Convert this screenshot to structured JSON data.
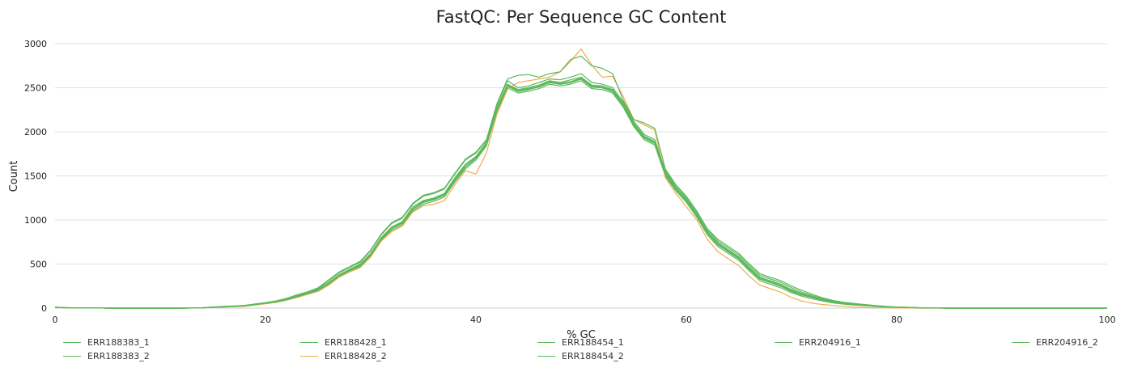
{
  "chart_data": {
    "type": "line",
    "title": "FastQC: Per Sequence GC Content",
    "xlabel": "% GC",
    "ylabel": "Count",
    "xlim": [
      0,
      100
    ],
    "ylim": [
      0,
      3000
    ],
    "x_ticks": [
      0,
      20,
      40,
      60,
      80,
      100
    ],
    "y_ticks": [
      0,
      500,
      1000,
      1500,
      2000,
      2500,
      3000
    ],
    "grid": "horizontal",
    "legend_position": "bottom",
    "x": [
      0,
      1,
      2,
      3,
      4,
      5,
      6,
      7,
      8,
      9,
      10,
      11,
      12,
      13,
      14,
      15,
      16,
      17,
      18,
      19,
      20,
      21,
      22,
      23,
      24,
      25,
      26,
      27,
      28,
      29,
      30,
      31,
      32,
      33,
      34,
      35,
      36,
      37,
      38,
      39,
      40,
      41,
      42,
      43,
      44,
      45,
      46,
      47,
      48,
      49,
      50,
      51,
      52,
      53,
      54,
      55,
      56,
      57,
      58,
      59,
      60,
      61,
      62,
      63,
      64,
      65,
      66,
      67,
      68,
      69,
      70,
      71,
      72,
      73,
      74,
      75,
      76,
      77,
      78,
      79,
      80,
      81,
      82,
      83,
      84,
      85,
      86,
      87,
      88,
      89,
      90,
      91,
      92,
      93,
      94,
      95,
      96,
      97,
      98,
      99,
      100
    ],
    "series": [
      {
        "name": "ERR188383_1",
        "color": "#5cb85c",
        "values": [
          10,
          5,
          3,
          2,
          1,
          0,
          0,
          0,
          0,
          0,
          0,
          0,
          0,
          1,
          3,
          8,
          14,
          18,
          24,
          40,
          55,
          70,
          95,
          130,
          165,
          200,
          280,
          370,
          430,
          480,
          600,
          780,
          900,
          960,
          1120,
          1200,
          1230,
          1280,
          1450,
          1600,
          1700,
          1860,
          2250,
          2520,
          2460,
          2480,
          2510,
          2560,
          2540,
          2560,
          2600,
          2510,
          2500,
          2460,
          2300,
          2080,
          1930,
          1870,
          1520,
          1350,
          1220,
          1050,
          850,
          720,
          640,
          560,
          440,
          330,
          290,
          250,
          190,
          150,
          120,
          90,
          65,
          50,
          40,
          32,
          22,
          15,
          10,
          7,
          4,
          2,
          1,
          0,
          0,
          0,
          0,
          0,
          0,
          0,
          0,
          0,
          0,
          0,
          0,
          0,
          0,
          0,
          0
        ]
      },
      {
        "name": "ERR188383_2",
        "color": "#5cb85c",
        "values": [
          8,
          4,
          2,
          1,
          1,
          0,
          0,
          0,
          0,
          0,
          0,
          0,
          0,
          1,
          4,
          10,
          15,
          20,
          26,
          42,
          58,
          75,
          100,
          138,
          172,
          210,
          290,
          380,
          440,
          500,
          620,
          800,
          920,
          980,
          1150,
          1220,
          1250,
          1300,
          1480,
          1630,
          1720,
          1880,
          2270,
          2540,
          2480,
          2500,
          2530,
          2580,
          2560,
          2590,
          2620,
          2530,
          2520,
          2480,
          2320,
          2100,
          1950,
          1890,
          1540,
          1370,
          1240,
          1070,
          870,
          740,
          660,
          580,
          460,
          350,
          310,
          270,
          210,
          165,
          130,
          95,
          70,
          55,
          45,
          35,
          25,
          17,
          11,
          8,
          5,
          3,
          1,
          0,
          0,
          0,
          0,
          0,
          0,
          0,
          0,
          0,
          0,
          0,
          0,
          0,
          0,
          0,
          0
        ]
      },
      {
        "name": "ERR188428_1",
        "color": "#5cb85c",
        "values": [
          9,
          5,
          3,
          2,
          1,
          0,
          0,
          0,
          0,
          0,
          0,
          0,
          0,
          1,
          3,
          9,
          13,
          17,
          22,
          38,
          52,
          68,
          92,
          125,
          160,
          195,
          270,
          360,
          420,
          470,
          590,
          770,
          880,
          940,
          1100,
          1180,
          1210,
          1260,
          1430,
          1580,
          1680,
          1840,
          2230,
          2500,
          2440,
          2460,
          2490,
          2540,
          2520,
          2540,
          2580,
          2490,
          2480,
          2440,
          2280,
          2060,
          1910,
          1850,
          1500,
          1330,
          1200,
          1030,
          830,
          700,
          620,
          540,
          420,
          310,
          270,
          230,
          175,
          135,
          105,
          80,
          58,
          45,
          35,
          28,
          19,
          13,
          8,
          6,
          3,
          2,
          1,
          0,
          0,
          0,
          0,
          0,
          0,
          0,
          0,
          0,
          0,
          0,
          0,
          0,
          0,
          0,
          0
        ]
      },
      {
        "name": "ERR188428_2",
        "color": "#f0ad4e",
        "values": [
          8,
          4,
          2,
          1,
          1,
          0,
          0,
          0,
          0,
          0,
          0,
          0,
          0,
          1,
          3,
          8,
          12,
          16,
          20,
          35,
          50,
          65,
          90,
          120,
          155,
          190,
          260,
          350,
          410,
          460,
          580,
          760,
          870,
          930,
          1090,
          1160,
          1180,
          1220,
          1400,
          1560,
          1520,
          1760,
          2200,
          2480,
          2560,
          2580,
          2600,
          2620,
          2680,
          2800,
          2940,
          2760,
          2620,
          2630,
          2400,
          2140,
          2080,
          2020,
          1480,
          1300,
          1150,
          1000,
          780,
          640,
          560,
          480,
          360,
          260,
          220,
          180,
          120,
          80,
          55,
          40,
          30,
          20,
          12,
          8,
          5,
          3,
          2,
          1,
          0,
          0,
          0,
          0,
          0,
          0,
          0,
          0,
          0,
          0,
          0,
          0,
          0,
          0,
          0,
          0,
          0,
          0,
          0
        ]
      },
      {
        "name": "ERR188454_1",
        "color": "#5cb85c",
        "values": [
          10,
          5,
          3,
          2,
          1,
          0,
          0,
          0,
          0,
          0,
          0,
          0,
          0,
          1,
          4,
          9,
          14,
          19,
          25,
          41,
          56,
          72,
          97,
          133,
          168,
          205,
          285,
          375,
          435,
          490,
          610,
          790,
          910,
          970,
          1130,
          1210,
          1240,
          1290,
          1460,
          1620,
          1710,
          1870,
          2260,
          2530,
          2470,
          2490,
          2520,
          2570,
          2550,
          2570,
          2610,
          2520,
          2510,
          2470,
          2310,
          2090,
          1940,
          1880,
          1530,
          1360,
          1230,
          1060,
          860,
          730,
          650,
          570,
          450,
          340,
          300,
          260,
          200,
          158,
          125,
          92,
          68,
          52,
          42,
          33,
          23,
          16,
          10,
          7,
          4,
          2,
          1,
          0,
          0,
          0,
          0,
          0,
          0,
          0,
          0,
          0,
          0,
          0,
          0,
          0,
          0,
          0,
          0
        ]
      },
      {
        "name": "ERR188454_2",
        "color": "#5cb85c",
        "values": [
          9,
          4,
          3,
          2,
          1,
          0,
          0,
          0,
          0,
          0,
          0,
          0,
          0,
          1,
          3,
          9,
          14,
          18,
          24,
          39,
          54,
          70,
          94,
          128,
          163,
          200,
          278,
          368,
          428,
          478,
          598,
          778,
          898,
          958,
          1118,
          1198,
          1228,
          1278,
          1448,
          1598,
          1698,
          1858,
          2248,
          2518,
          2458,
          2478,
          2508,
          2558,
          2538,
          2558,
          2598,
          2508,
          2498,
          2458,
          2298,
          2078,
          1928,
          1868,
          1518,
          1348,
          1218,
          1048,
          848,
          718,
          638,
          558,
          438,
          328,
          288,
          248,
          188,
          148,
          118,
          88,
          63,
          48,
          38,
          30,
          21,
          14,
          9,
          6,
          3,
          2,
          1,
          0,
          0,
          0,
          0,
          0,
          0,
          0,
          0,
          0,
          0,
          0,
          0,
          0,
          0,
          0,
          0
        ]
      },
      {
        "name": "ERR204916_1",
        "color": "#5cb85c",
        "values": [
          11,
          6,
          3,
          2,
          1,
          0,
          0,
          0,
          0,
          0,
          0,
          0,
          0,
          2,
          5,
          12,
          18,
          22,
          28,
          45,
          60,
          80,
          105,
          145,
          180,
          220,
          310,
          400,
          460,
          520,
          650,
          830,
          960,
          1020,
          1180,
          1270,
          1300,
          1350,
          1520,
          1680,
          1760,
          1900,
          2300,
          2580,
          2500,
          2520,
          2560,
          2600,
          2590,
          2620,
          2660,
          2560,
          2540,
          2500,
          2340,
          2120,
          1970,
          1910,
          1560,
          1390,
          1260,
          1090,
          890,
          760,
          680,
          600,
          480,
          370,
          330,
          290,
          230,
          180,
          140,
          105,
          78,
          60,
          48,
          38,
          27,
          18,
          12,
          9,
          5,
          3,
          1,
          0,
          0,
          0,
          0,
          0,
          0,
          0,
          0,
          0,
          0,
          0,
          0,
          0,
          0,
          0,
          0
        ]
      },
      {
        "name": "ERR204916_2",
        "color": "#5cb85c",
        "values": [
          12,
          6,
          4,
          2,
          1,
          0,
          0,
          0,
          0,
          0,
          0,
          0,
          0,
          2,
          5,
          12,
          19,
          24,
          30,
          48,
          62,
          82,
          110,
          150,
          185,
          230,
          320,
          410,
          470,
          530,
          660,
          840,
          970,
          1030,
          1190,
          1280,
          1310,
          1360,
          1530,
          1690,
          1770,
          1910,
          2320,
          2600,
          2640,
          2650,
          2620,
          2660,
          2680,
          2820,
          2860,
          2750,
          2720,
          2660,
          2360,
          2140,
          2100,
          2040,
          1580,
          1400,
          1270,
          1100,
          900,
          780,
          700,
          620,
          500,
          390,
          350,
          310,
          250,
          200,
          155,
          115,
          85,
          65,
          52,
          40,
          29,
          20,
          13,
          9,
          5,
          3,
          1,
          0,
          0,
          0,
          0,
          0,
          0,
          0,
          0,
          0,
          0,
          0,
          0,
          0,
          0,
          0,
          0
        ]
      }
    ]
  }
}
